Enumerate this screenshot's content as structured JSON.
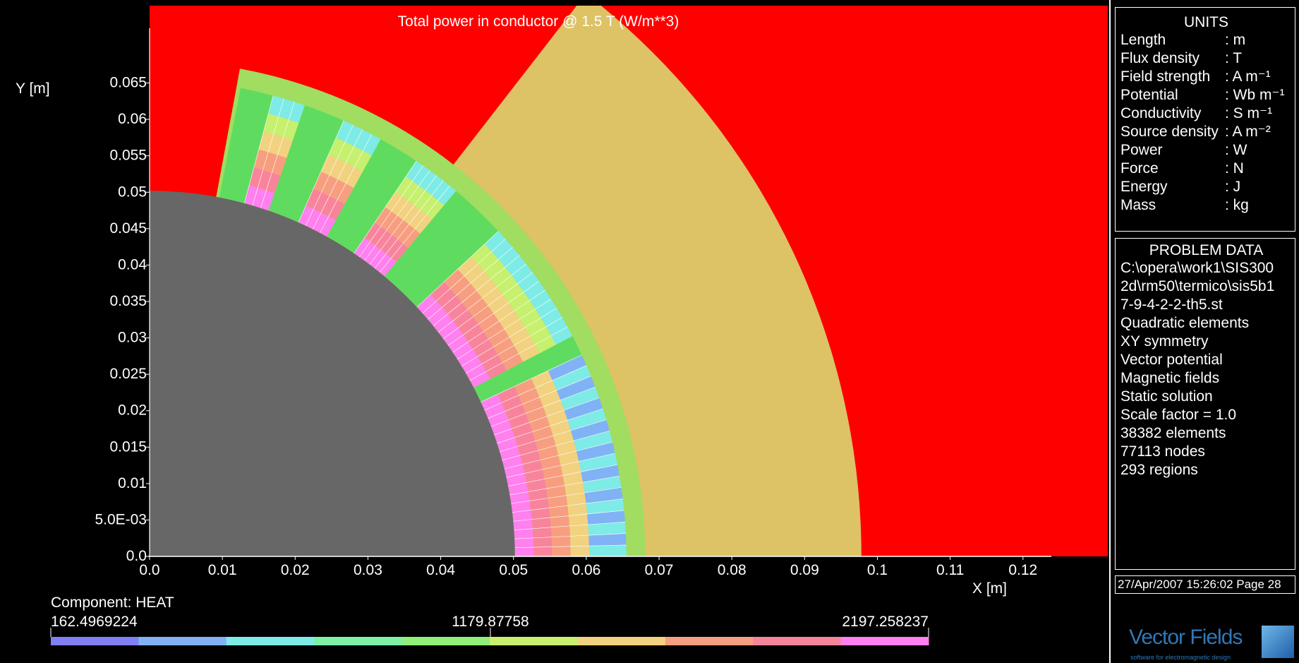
{
  "plot": {
    "title": "Total power in conductor @ 1.5 T (W/m**3)",
    "x_axis_label": "X [m]",
    "y_axis_label": "Y [m]",
    "x_ticks": [
      "0.0",
      "0.01",
      "0.02",
      "0.03",
      "0.04",
      "0.05",
      "0.06",
      "0.07",
      "0.08",
      "0.09",
      "0.1",
      "0.11",
      "0.12"
    ],
    "y_ticks": [
      "0.0",
      "5.0E-03",
      "0.01",
      "0.015",
      "0.02",
      "0.025",
      "0.03",
      "0.035",
      "0.04",
      "0.045",
      "0.05",
      "0.055",
      "0.06",
      "0.065"
    ],
    "colors": {
      "yoke": "#ddc266",
      "outer": "#ff0000",
      "bore": "#676767",
      "collar": "#a0dd60",
      "wedge": "#5fdc5f"
    }
  },
  "legend": {
    "component_label": "Component: HEAT",
    "min_value": "162.4969224",
    "mid_value": "1179.87758",
    "max_value": "2197.258237",
    "colors": [
      "#8080f2",
      "#80b2f5",
      "#7eebe6",
      "#7ef0a6",
      "#90ef78",
      "#c6f06e",
      "#f2d280",
      "#f89e80",
      "#f8849c",
      "#ff80ee"
    ]
  },
  "units": {
    "title": "UNITS",
    "rows": [
      {
        "k": "Length",
        "v": ": m"
      },
      {
        "k": "Flux density",
        "v": ": T"
      },
      {
        "k": "Field strength",
        "v": ": A m⁻¹"
      },
      {
        "k": "Potential",
        "v": ": Wb m⁻¹"
      },
      {
        "k": "Conductivity",
        "v": ": S m⁻¹"
      },
      {
        "k": "Source density",
        "v": ": A m⁻²"
      },
      {
        "k": "Power",
        "v": ": W"
      },
      {
        "k": "Force",
        "v": ": N"
      },
      {
        "k": "Energy",
        "v": ": J"
      },
      {
        "k": "Mass",
        "v": ": kg"
      }
    ]
  },
  "problem_data": {
    "title": "PROBLEM DATA",
    "lines": [
      "C:\\opera\\work1\\SIS300",
      "2d\\rm50\\termico\\sis5b1",
      "7-9-4-2-2-th5.st",
      "Quadratic elements",
      "XY symmetry",
      "Vector potential",
      "Magnetic fields",
      "Static solution",
      "Scale factor = 1.0",
      "38382 elements",
      "77113 nodes",
      "293 regions"
    ]
  },
  "footer": {
    "date_page": "27/Apr/2007 15:26:02 Page 28",
    "logo_text": "Vector Fields",
    "logo_sub": "software for electromagnetic design"
  }
}
